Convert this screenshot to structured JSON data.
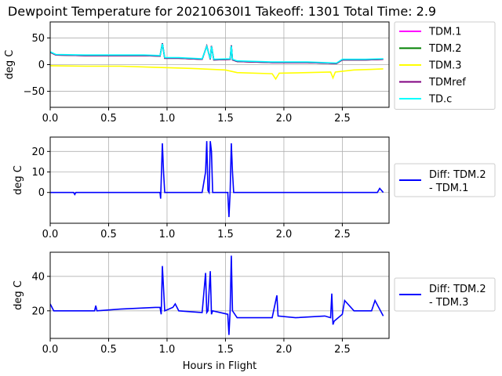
{
  "figure": {
    "title": "Dewpoint Temperature for 20210630I1 Takeoff: 1301 Total Time: 2.9",
    "xlabel": "Hours in Flight"
  },
  "chart_data": [
    {
      "type": "line",
      "ylabel": "deg C",
      "xlim": [
        0,
        2.9
      ],
      "ylim": [
        -80,
        80
      ],
      "xticks": [
        "0.0",
        "0.5",
        "1.0",
        "1.5",
        "2.0",
        "2.5"
      ],
      "yticks": [
        "−50",
        "0",
        "50"
      ],
      "grid": true,
      "legend_position": "outside-right",
      "series": [
        {
          "name": "TDM.1",
          "color": "#ff00ff",
          "x": [
            0,
            0.05,
            0.3,
            0.5,
            0.8,
            0.94,
            0.96,
            0.98,
            1.1,
            1.3,
            1.34,
            1.37,
            1.38,
            1.4,
            1.54,
            1.55,
            1.56,
            1.6,
            1.9,
            2.2,
            2.45,
            2.5,
            2.7,
            2.85
          ],
          "y": [
            23,
            18,
            17,
            17,
            17,
            16,
            40,
            12,
            12,
            10,
            35,
            10,
            35,
            9,
            10,
            36,
            9,
            6,
            4,
            4,
            2,
            9,
            9,
            10
          ]
        },
        {
          "name": "TDM.2",
          "color": "#008000",
          "x": [
            0,
            0.05,
            0.3,
            0.5,
            0.8,
            0.94,
            0.96,
            0.98,
            1.1,
            1.3,
            1.34,
            1.37,
            1.38,
            1.4,
            1.54,
            1.55,
            1.56,
            1.6,
            1.9,
            2.2,
            2.45,
            2.5,
            2.7,
            2.85
          ],
          "y": [
            23,
            18,
            17,
            17,
            17,
            16,
            40,
            12,
            12,
            10,
            35,
            10,
            35,
            9,
            10,
            36,
            9,
            6,
            4,
            4,
            2,
            9,
            9,
            10
          ]
        },
        {
          "name": "TDM.3",
          "color": "#ffff00",
          "x": [
            0,
            0.3,
            0.6,
            0.9,
            1.2,
            1.5,
            1.6,
            1.9,
            1.93,
            1.96,
            2.2,
            2.4,
            2.42,
            2.44,
            2.6,
            2.75,
            2.85
          ],
          "y": [
            -2,
            -3,
            -3,
            -5,
            -7,
            -10,
            -15,
            -17,
            -27,
            -16,
            -15,
            -14,
            -25,
            -14,
            -10,
            -9,
            -8
          ]
        },
        {
          "name": "TDMref",
          "color": "#800080",
          "x": [
            0,
            0.05,
            0.3,
            0.5,
            0.8,
            0.94,
            0.96,
            0.98,
            1.1,
            1.3,
            1.34,
            1.37,
            1.38,
            1.4,
            1.54,
            1.55,
            1.56,
            1.6,
            1.9,
            2.2,
            2.45,
            2.5,
            2.7,
            2.85
          ],
          "y": [
            23,
            18,
            17,
            17,
            17,
            16,
            40,
            12,
            12,
            10,
            35,
            10,
            35,
            9,
            10,
            36,
            9,
            6,
            4,
            4,
            2,
            9,
            9,
            10
          ]
        },
        {
          "name": "TD.c",
          "color": "#00ffff",
          "x": [
            0,
            0.05,
            0.3,
            0.5,
            0.8,
            0.94,
            0.96,
            0.98,
            1.1,
            1.3,
            1.34,
            1.37,
            1.38,
            1.4,
            1.54,
            1.55,
            1.56,
            1.6,
            1.9,
            2.2,
            2.45,
            2.5,
            2.7,
            2.85
          ],
          "y": [
            24,
            19,
            18,
            18,
            18,
            17,
            39,
            13,
            13,
            11,
            34,
            11,
            34,
            10,
            11,
            35,
            10,
            7,
            5,
            5,
            3,
            10,
            10,
            11
          ]
        }
      ]
    },
    {
      "type": "line",
      "ylabel": "deg C",
      "xlim": [
        0,
        2.9
      ],
      "ylim": [
        -15,
        27
      ],
      "xticks": [
        "0.0",
        "0.5",
        "1.0",
        "1.5",
        "2.0",
        "2.5"
      ],
      "yticks": [
        "0",
        "10",
        "20"
      ],
      "grid": true,
      "legend_position": "outside-right",
      "series": [
        {
          "name": "Diff: TDM.2 - TDM.1",
          "color": "#0000ff",
          "x": [
            0,
            0.2,
            0.21,
            0.22,
            0.5,
            0.94,
            0.945,
            0.96,
            0.97,
            0.98,
            1.1,
            1.3,
            1.33,
            1.34,
            1.35,
            1.36,
            1.37,
            1.38,
            1.39,
            1.5,
            1.52,
            1.53,
            1.54,
            1.55,
            1.56,
            1.57,
            1.8,
            2.0,
            2.5,
            2.8,
            2.82,
            2.85
          ],
          "y": [
            0,
            0,
            -1,
            0,
            0,
            0,
            -3,
            24,
            10,
            0,
            0,
            0,
            10,
            25,
            1,
            0,
            25,
            20,
            0,
            0,
            0,
            -12,
            0,
            24,
            10,
            0,
            0,
            0,
            0,
            0,
            2,
            0
          ]
        }
      ]
    },
    {
      "type": "line",
      "ylabel": "deg C",
      "xlim": [
        0,
        2.9
      ],
      "ylim": [
        4,
        54
      ],
      "xticks": [
        "0.0",
        "0.5",
        "1.0",
        "1.5",
        "2.0",
        "2.5"
      ],
      "yticks": [
        "20",
        "40"
      ],
      "grid": true,
      "legend_position": "outside-right",
      "series": [
        {
          "name": "Diff: TDM.2 - TDM.3",
          "color": "#0000ff",
          "x": [
            0,
            0.03,
            0.2,
            0.38,
            0.39,
            0.4,
            0.6,
            0.9,
            0.94,
            0.95,
            0.96,
            0.98,
            1.05,
            1.07,
            1.1,
            1.3,
            1.33,
            1.34,
            1.35,
            1.37,
            1.38,
            1.39,
            1.52,
            1.53,
            1.54,
            1.55,
            1.56,
            1.6,
            1.9,
            1.94,
            1.95,
            2.1,
            2.35,
            2.4,
            2.41,
            2.42,
            2.43,
            2.5,
            2.52,
            2.6,
            2.75,
            2.78,
            2.85
          ],
          "y": [
            24,
            20,
            20,
            20,
            23,
            20,
            21,
            22,
            22,
            18,
            46,
            20,
            22,
            24,
            20,
            19,
            42,
            19,
            20,
            43,
            18,
            20,
            18,
            6,
            20,
            52,
            20,
            16,
            16,
            29,
            17,
            16,
            17,
            16,
            30,
            12,
            14,
            18,
            26,
            20,
            20,
            26,
            17
          ]
        }
      ]
    }
  ]
}
